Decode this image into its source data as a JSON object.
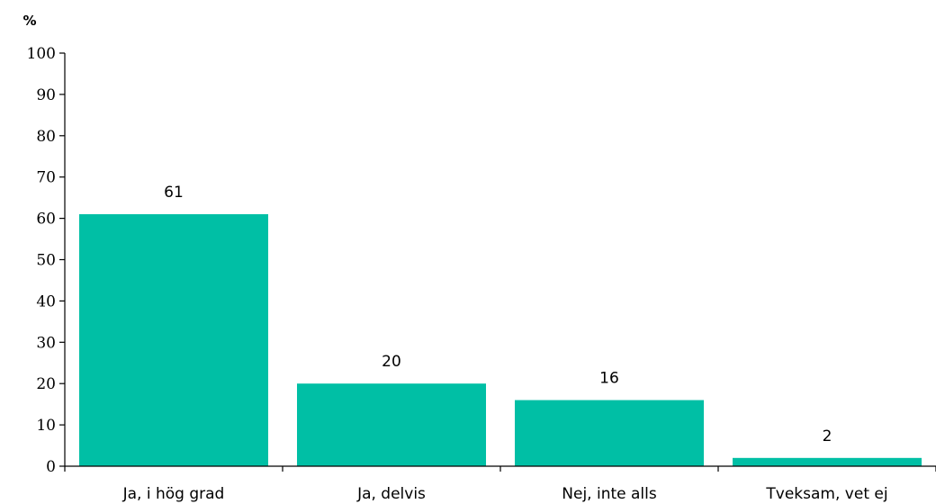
{
  "chart_data": {
    "type": "bar",
    "title": "",
    "ylabel": "%",
    "xlabel": "",
    "ylim": [
      0,
      100
    ],
    "yticks": [
      0,
      10,
      20,
      30,
      40,
      50,
      60,
      70,
      80,
      90,
      100
    ],
    "categories": [
      "Ja, i hög grad",
      "Ja, delvis",
      "Nej, inte alls",
      "Tveksam, vet ej"
    ],
    "values": [
      61,
      20,
      16,
      2
    ],
    "data_labels": [
      "61",
      "20",
      "16",
      "2"
    ],
    "bar_color": "#00BFA5",
    "grid": false,
    "legend": "none"
  }
}
